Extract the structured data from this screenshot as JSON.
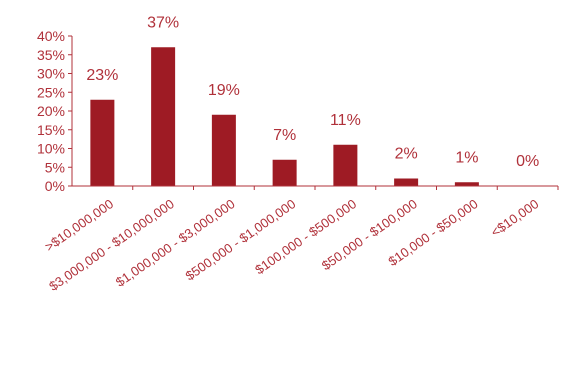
{
  "colors": {
    "bar": "#9e1b24",
    "text": "#b0313a",
    "axis": "#b0313a"
  },
  "chart_data": {
    "type": "bar",
    "categories": [
      ">$10,000,000",
      "$3,000,000 - $10,000,000",
      "$1,000,000 - $3,000,000",
      "$500,000 - $1,000,000",
      "$100,000 - $500,000",
      "$50,000 - $100,000",
      "$10,000 - $50,000",
      "<$10,000"
    ],
    "values": [
      23,
      37,
      19,
      7,
      11,
      2,
      1,
      0
    ],
    "data_labels": [
      "23%",
      "37%",
      "19%",
      "7%",
      "11%",
      "2%",
      "1%",
      "0%"
    ],
    "yticks": [
      0,
      5,
      10,
      15,
      20,
      25,
      30,
      35,
      40
    ],
    "ytick_labels": [
      "0%",
      "5%",
      "10%",
      "15%",
      "20%",
      "25%",
      "30%",
      "35%",
      "40%"
    ],
    "ylim": [
      0,
      40
    ],
    "grid": false,
    "title": "",
    "xlabel": "",
    "ylabel": ""
  }
}
